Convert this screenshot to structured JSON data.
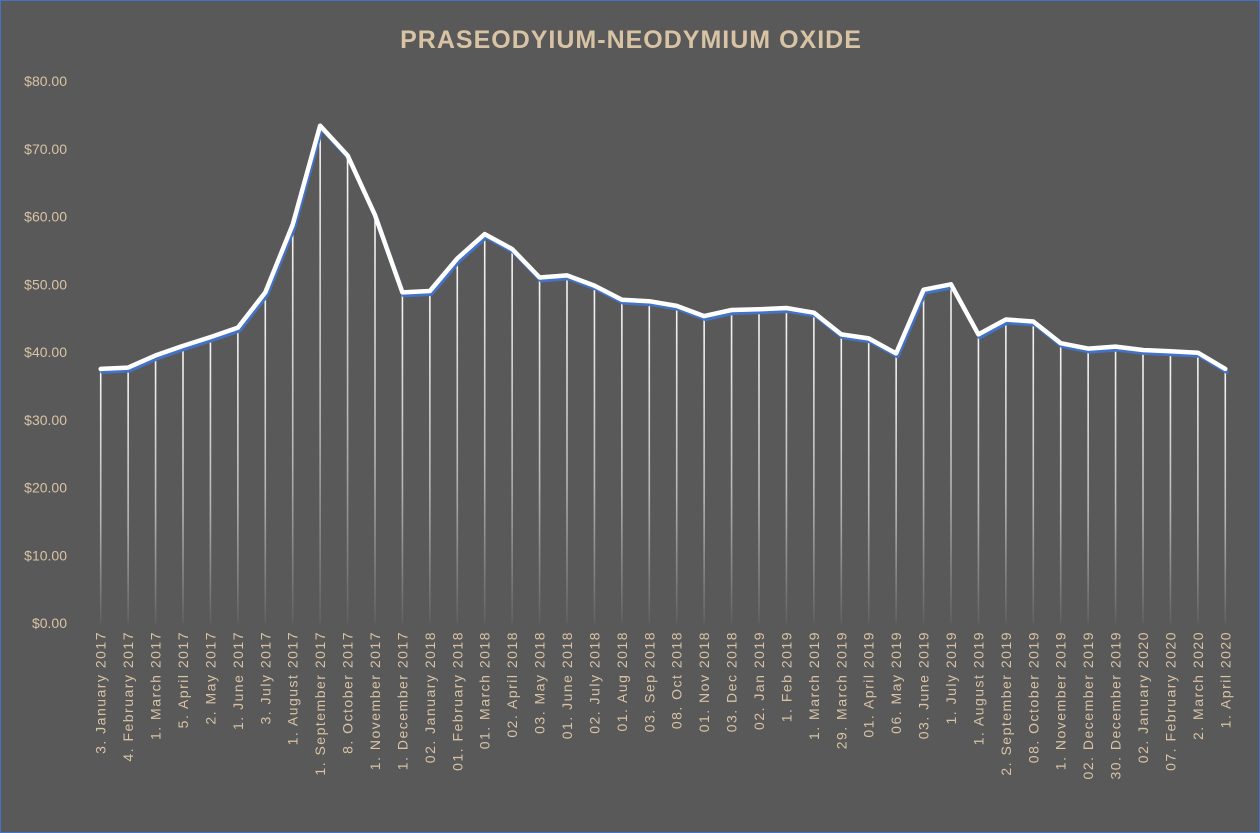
{
  "chart_data": {
    "type": "line",
    "title": "PRASEODYIUM-NEODYMIUM  OXIDE",
    "xlabel": "",
    "ylabel": "",
    "ylim": [
      0,
      80
    ],
    "y_ticks": [
      "$0.00",
      "$10.00",
      "$20.00",
      "$30.00",
      "$40.00",
      "$50.00",
      "$60.00",
      "$70.00",
      "$80.00"
    ],
    "y_tick_values": [
      0,
      10,
      20,
      30,
      40,
      50,
      60,
      70,
      80
    ],
    "grid": false,
    "drop_lines": true,
    "legend": "none",
    "categories": [
      "3. January 2017",
      "4. February 2017",
      "1. March 2017",
      "5. April 2017",
      "2. May 2017",
      "1. June 2017",
      "3. July 2017",
      "1. August 2017",
      "1. September 2017",
      "8. October 2017",
      "1. November 2017",
      "1. December 2017",
      "02. January 2018",
      "01. February 2018",
      "01. March 2018",
      "02. April 2018",
      "03. May 2018",
      "01. June 2018",
      "02. July 2018",
      "01. Aug 2018",
      "03. Sep 2018",
      "08. Oct 2018",
      "01. Nov 2018",
      "03. Dec 2018",
      "02. Jan 2019",
      "1. Feb 2019",
      "1. March 2019",
      "29. March 2019",
      "01. April 2019",
      "06. May 2019",
      "03. June 2019",
      "1. July 2019",
      "1. August 2019",
      "2. September 2019",
      "08. October 2019",
      "1. November 2019",
      "02. December 2019",
      "30. December 2019",
      "02. January 2020",
      "07. February 2020",
      "2. March 2020",
      "1. April 2020"
    ],
    "series": [
      {
        "values": [
          37.5,
          37.7,
          39.5,
          40.9,
          42.2,
          43.6,
          48.8,
          58.8,
          73.4,
          69.0,
          60.2,
          48.8,
          49.0,
          53.8,
          57.4,
          55.2,
          51.0,
          51.3,
          49.8,
          47.7,
          47.5,
          46.8,
          45.3,
          46.2,
          46.3,
          46.5,
          45.8,
          42.6,
          42.0,
          39.8,
          49.2,
          50.0,
          42.6,
          44.8,
          44.5,
          41.3,
          40.5,
          40.8,
          40.3,
          40.1,
          39.9,
          37.5
        ]
      }
    ],
    "colors": {
      "background": "#595959",
      "border": "#4472c4",
      "title": "#d8c3a5",
      "tick_labels": "#d8c3a5",
      "line": "#ffffff",
      "line_shadow": "#4472c4",
      "drop_line": "#ffffff"
    }
  }
}
